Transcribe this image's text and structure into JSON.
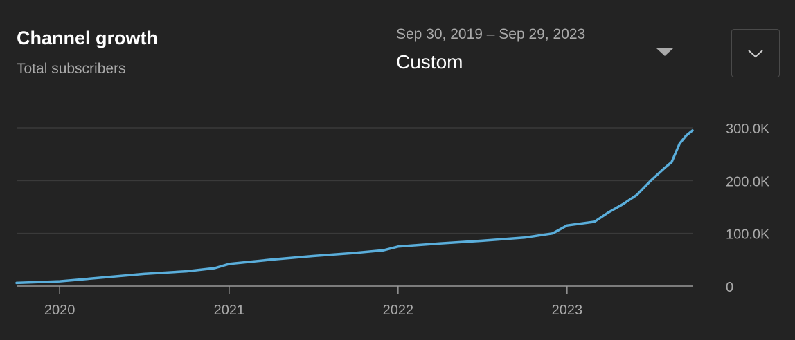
{
  "header": {
    "title": "Channel growth",
    "subtitle": "Total subscribers"
  },
  "date_range": {
    "dates": "Sep 30, 2019 – Sep 29, 2023",
    "label": "Custom",
    "dropdown_icon": "caret-down-icon"
  },
  "expand_button": {
    "icon": "chevron-down-icon"
  },
  "colors": {
    "background": "#232323",
    "line": "#5aaedb",
    "grid": "#3a3a3a",
    "axis": "#9a9a9a",
    "text_muted": "#aaaaaa"
  },
  "chart_data": {
    "type": "line",
    "title": "",
    "xlabel": "",
    "ylabel": "",
    "xlim": [
      "2019-09-30",
      "2023-09-29"
    ],
    "ylim": [
      0,
      300000
    ],
    "y_ticks": [
      {
        "value": 0,
        "label": "0"
      },
      {
        "value": 100000,
        "label": "100.0K"
      },
      {
        "value": 200000,
        "label": "200.0K"
      },
      {
        "value": 300000,
        "label": "300.0K"
      }
    ],
    "x_ticks": [
      {
        "value": "2020-01-01",
        "label": "2020"
      },
      {
        "value": "2021-01-01",
        "label": "2021"
      },
      {
        "value": "2022-01-01",
        "label": "2022"
      },
      {
        "value": "2023-01-01",
        "label": "2023"
      }
    ],
    "grid": true,
    "legend": "none",
    "series": [
      {
        "x": [
          "2019-09-30",
          "2020-01-01",
          "2020-04-01",
          "2020-07-01",
          "2020-10-01",
          "2020-12-01",
          "2021-01-01",
          "2021-04-01",
          "2021-07-01",
          "2021-10-01",
          "2021-12-01",
          "2022-01-01",
          "2022-04-01",
          "2022-07-01",
          "2022-10-01",
          "2022-12-01",
          "2023-01-01",
          "2023-03-01",
          "2023-04-01",
          "2023-05-01",
          "2023-06-01",
          "2023-07-01",
          "2023-08-01",
          "2023-08-15",
          "2023-09-01",
          "2023-09-15",
          "2023-09-29"
        ],
        "values": [
          6000,
          9000,
          16000,
          23000,
          28000,
          34000,
          42000,
          50000,
          57000,
          63000,
          68000,
          75000,
          81000,
          86000,
          92000,
          100000,
          115000,
          122000,
          140000,
          155000,
          173000,
          200000,
          225000,
          235000,
          270000,
          285000,
          295000
        ]
      }
    ]
  }
}
